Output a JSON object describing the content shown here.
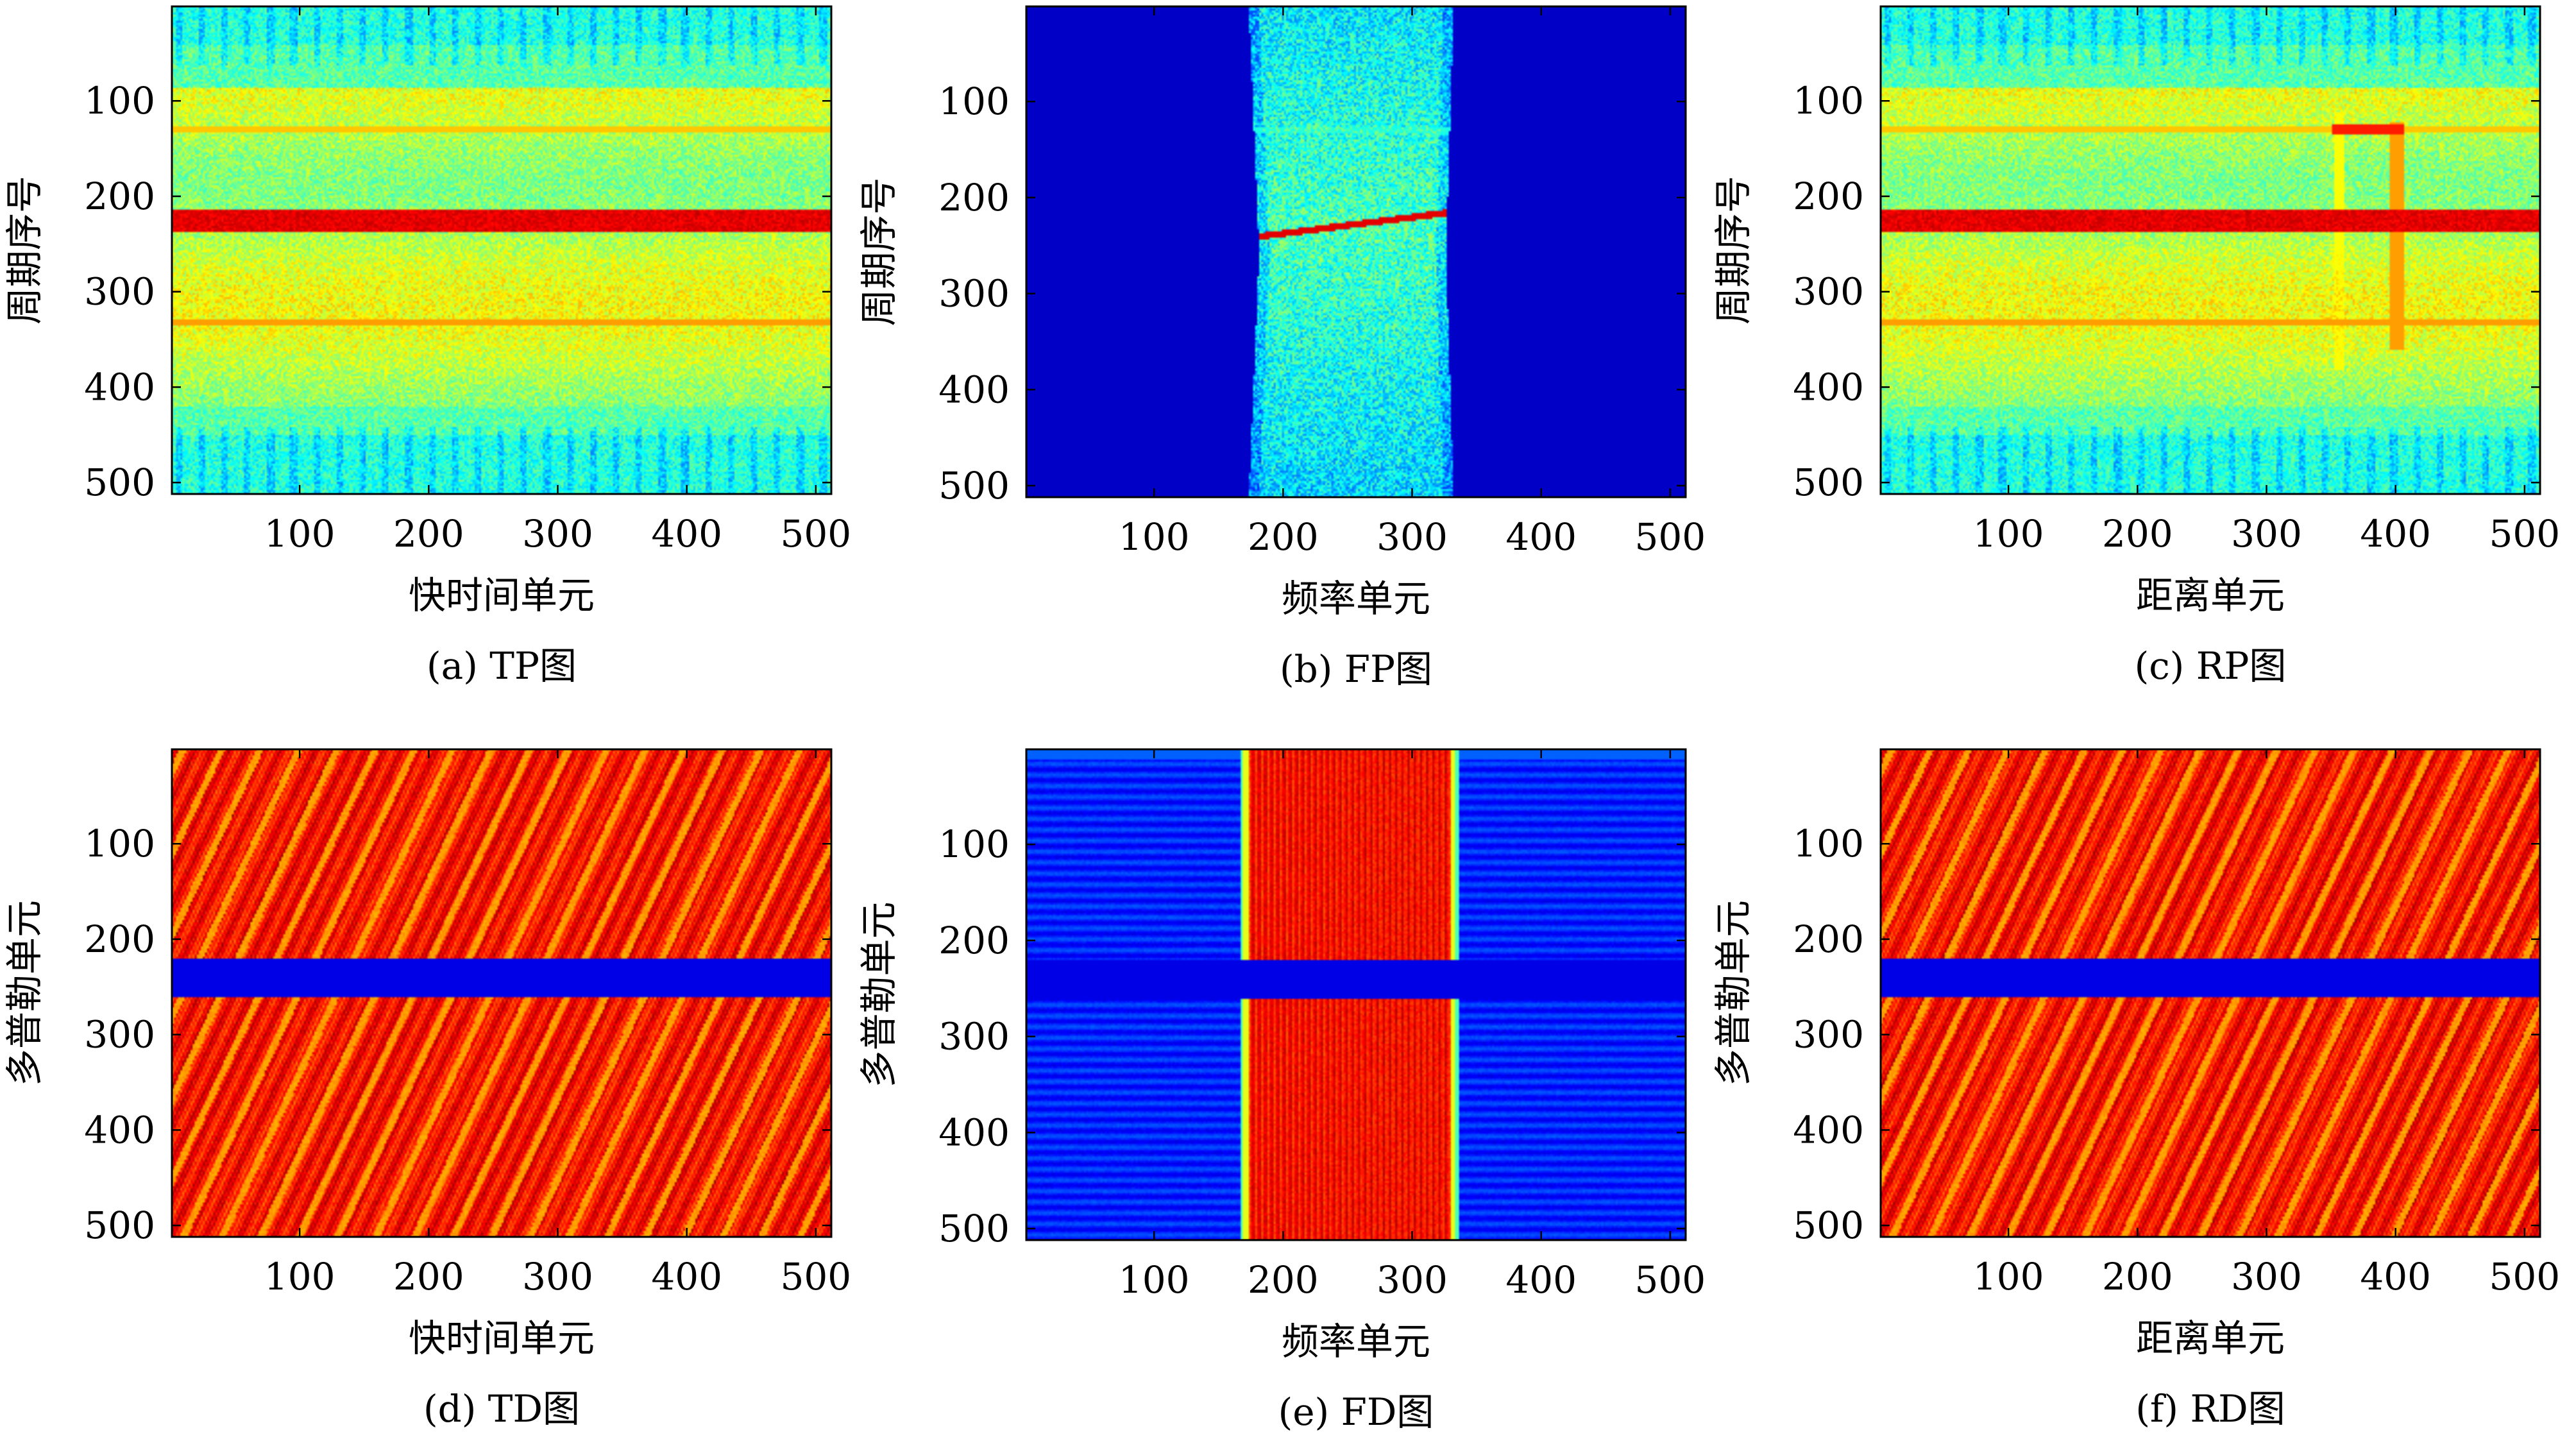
{
  "chart_data": [
    {
      "type": "heatmap",
      "caption": "(a) TP图",
      "xlabel": "快时间单元",
      "ylabel": "周期序号",
      "xticks": [
        100,
        200,
        300,
        400,
        500
      ],
      "yticks": [
        100,
        200,
        300,
        400,
        500
      ],
      "xlim": [
        1,
        512
      ],
      "ylim": [
        1,
        512
      ],
      "y_reversed": true,
      "colormap": "jet",
      "pattern": "tp_noise"
    },
    {
      "type": "heatmap",
      "caption": "(b) FP图",
      "xlabel": "频率单元",
      "ylabel": "周期序号",
      "xticks": [
        100,
        200,
        300,
        400,
        500
      ],
      "yticks": [
        100,
        200,
        300,
        400,
        500
      ],
      "xlim": [
        1,
        512
      ],
      "ylim": [
        1,
        512
      ],
      "y_reversed": true,
      "colormap": "jet",
      "pattern": "fp_band"
    },
    {
      "type": "heatmap",
      "caption": "(c) RP图",
      "xlabel": "距离单元",
      "ylabel": "周期序号",
      "xticks": [
        100,
        200,
        300,
        400,
        500
      ],
      "yticks": [
        100,
        200,
        300,
        400,
        500
      ],
      "xlim": [
        1,
        512
      ],
      "ylim": [
        1,
        512
      ],
      "y_reversed": true,
      "colormap": "jet",
      "pattern": "rp_noise"
    },
    {
      "type": "heatmap",
      "caption": "(d) TD图",
      "xlabel": "快时间单元",
      "ylabel": "多普勒单元",
      "xticks": [
        100,
        200,
        300,
        400,
        500
      ],
      "yticks": [
        100,
        200,
        300,
        400,
        500
      ],
      "xlim": [
        1,
        512
      ],
      "ylim": [
        1,
        512
      ],
      "y_reversed": true,
      "colormap": "jet",
      "pattern": "stripes_gap"
    },
    {
      "type": "heatmap",
      "caption": "(e) FD图",
      "xlabel": "频率单元",
      "ylabel": "多普勒单元",
      "xticks": [
        100,
        200,
        300,
        400,
        500
      ],
      "yticks": [
        100,
        200,
        300,
        400,
        500
      ],
      "xlim": [
        1,
        512
      ],
      "ylim": [
        1,
        512
      ],
      "y_reversed": true,
      "colormap": "jet",
      "pattern": "fd_band"
    },
    {
      "type": "heatmap",
      "caption": "(f) RD图",
      "xlabel": "距离单元",
      "ylabel": "多普勒单元",
      "xticks": [
        100,
        200,
        300,
        400,
        500
      ],
      "yticks": [
        100,
        200,
        300,
        400,
        500
      ],
      "xlim": [
        1,
        512
      ],
      "ylim": [
        1,
        512
      ],
      "y_reversed": true,
      "colormap": "jet",
      "pattern": "stripes_gap"
    }
  ]
}
